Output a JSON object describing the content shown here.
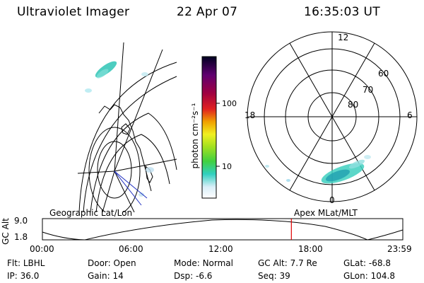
{
  "header": {
    "title": "Ultraviolet Imager",
    "date": "22 Apr 07",
    "time": "16:35:03 UT"
  },
  "colorbar": {
    "unit_label": "photon cm⁻²s⁻¹",
    "ticks": [
      "100",
      "10"
    ]
  },
  "polar_plot": {
    "mlt_labels": {
      "top": "12",
      "left": "18",
      "right": "6",
      "bottom": "0"
    },
    "lat_labels": [
      "60",
      "70",
      "80"
    ]
  },
  "timeline": {
    "left_title": "Geographic Lat/Lon",
    "right_title": "Apex MLat/MLT",
    "axis_label": "GC Alt",
    "y_ticks": [
      "9.0",
      "1.8"
    ],
    "x_ticks": [
      "00:00",
      "06:00",
      "12:00",
      "18:00",
      "23:59"
    ],
    "marker_time_hours": 16.58,
    "marker_color": "#e00000"
  },
  "info": {
    "row1": [
      {
        "label": "Flt:",
        "value": "LBHL"
      },
      {
        "label": "Door:",
        "value": "Open"
      },
      {
        "label": "Mode:",
        "value": "Normal"
      },
      {
        "label": "GC Alt:",
        "value": "7.7 Re"
      },
      {
        "label": "GLat:",
        "value": "-68.8"
      }
    ],
    "row2": [
      {
        "label": "IP:",
        "value": "36.0"
      },
      {
        "label": "Gain:",
        "value": "14"
      },
      {
        "label": "Dsp:",
        "value": "-6.6"
      },
      {
        "label": "Seq:",
        "value": "39"
      },
      {
        "label": "GLon:",
        "value": "104.8"
      }
    ]
  }
}
